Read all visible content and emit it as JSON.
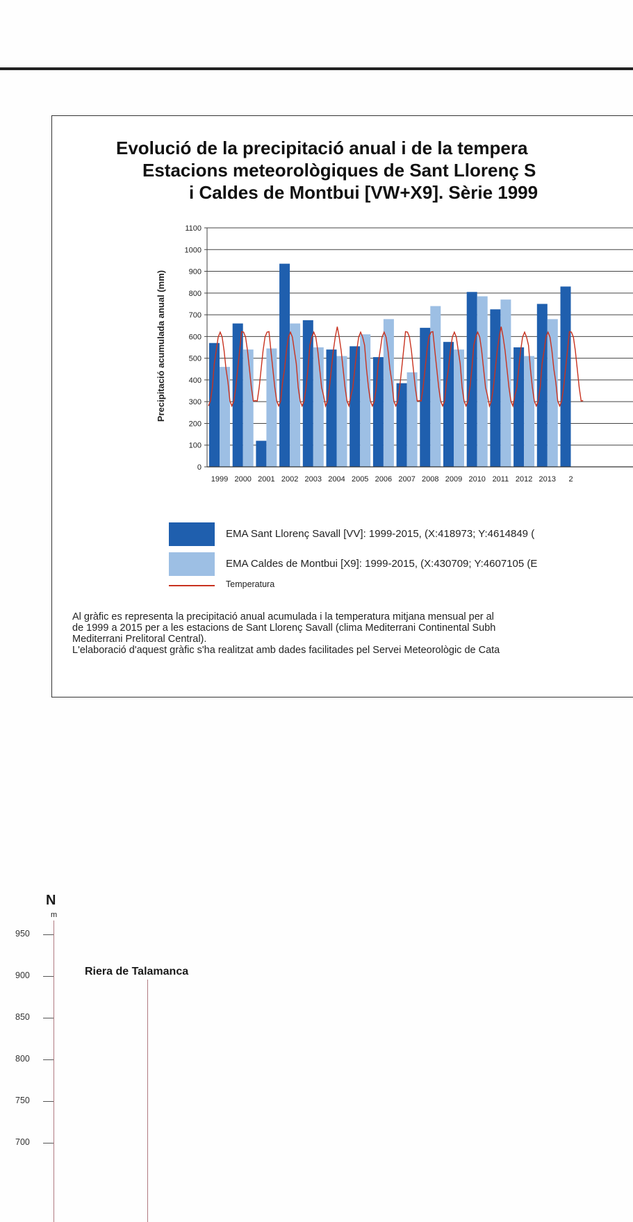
{
  "chart_title": {
    "line1": "Evolució de la precipitació anual i de la tempera",
    "line2": "Estacions meteorològiques de Sant Llorenç S",
    "line3": "i Caldes de Montbui [VW+X9]. Sèrie 1999"
  },
  "chart_data": {
    "type": "bar",
    "ylabel": "Precipitació acumulada anual (mm)",
    "ylim": [
      0,
      1100
    ],
    "yticks": [
      0,
      100,
      200,
      300,
      400,
      500,
      600,
      700,
      800,
      900,
      1000,
      1100
    ],
    "grid": true,
    "categories": [
      "1999",
      "2000",
      "2001",
      "2002",
      "2003",
      "2004",
      "2005",
      "2006",
      "2007",
      "2008",
      "2009",
      "2010",
      "2011",
      "2012",
      "2013",
      "2"
    ],
    "series": [
      {
        "name": "EMA Sant Llorenç Savall [VV]: 1999-2015, (X:418973; Y:4614849 (",
        "color": "#1f5fae",
        "values": [
          570,
          660,
          120,
          935,
          675,
          540,
          555,
          505,
          385,
          640,
          575,
          805,
          725,
          550,
          750,
          830
        ]
      },
      {
        "name": "EMA Caldes de Montbui [X9]: 1999-2015, (X:430709; Y:4607105 (E",
        "color": "#9dbfe4",
        "values": [
          460,
          540,
          545,
          660,
          550,
          510,
          610,
          680,
          435,
          740,
          540,
          785,
          770,
          510,
          680,
          0
        ]
      },
      {
        "name": "Temperatura",
        "color": "#c8321f",
        "type": "line"
      }
    ]
  },
  "description": {
    "line1": "Al gràfic es representa la precipitació anual acumulada i la temperatura mitjana mensual per al",
    "line2": "de 1999 a 2015 per a les estacions de Sant Llorenç Savall (clima Mediterrani Continental Subh",
    "line3": "Mediterrani Prelitoral Central).",
    "line4": "L'elaboració d'aquest gràfic s'ha realitzat amb dades facilitades pel Servei Meteorològic de Cata"
  },
  "profile": {
    "north_label": "N",
    "unit": "m",
    "river_label": "Riera de Talamanca",
    "elevations": [
      "950",
      "900",
      "850",
      "800",
      "750",
      "700"
    ]
  }
}
